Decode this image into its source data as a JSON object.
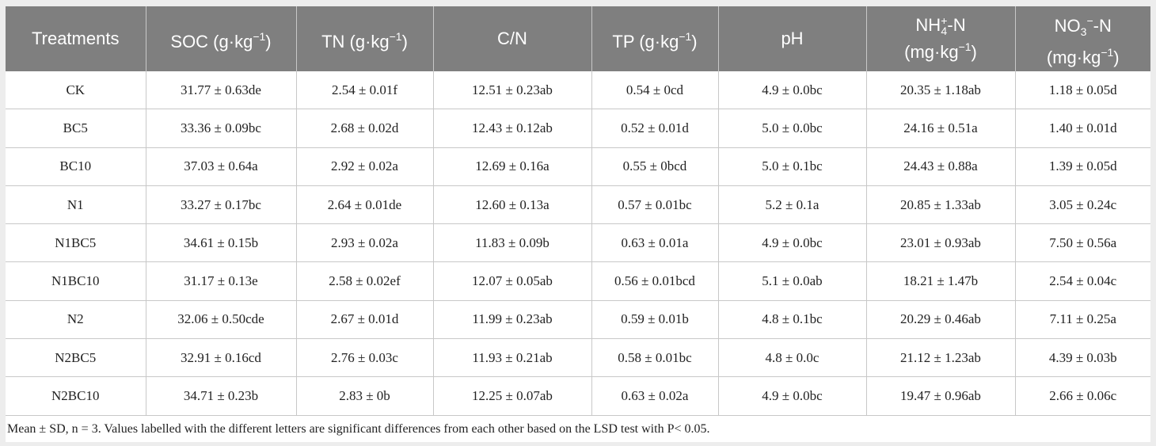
{
  "table": {
    "header": [
      [
        [
          {
            "t": "Treatments"
          }
        ]
      ],
      [
        [
          {
            "t": "SOC (g·kg"
          },
          {
            "t": "−1",
            "s": "sup"
          },
          {
            "t": ")"
          }
        ]
      ],
      [
        [
          {
            "t": "TN (g·kg"
          },
          {
            "t": "−1",
            "s": "sup"
          },
          {
            "t": ")"
          }
        ]
      ],
      [
        [
          {
            "t": "C/N"
          }
        ]
      ],
      [
        [
          {
            "t": "TP (g·kg"
          },
          {
            "t": "−1",
            "s": "sup"
          },
          {
            "t": ")"
          }
        ]
      ],
      [
        [
          {
            "t": "pH"
          }
        ]
      ],
      [
        [
          {
            "t": "NH"
          },
          {
            "t": "+",
            "s": "supsub",
            "u": "4"
          },
          {
            "t": "-N"
          }
        ],
        [
          {
            "t": "(mg·kg"
          },
          {
            "t": "−1",
            "s": "sup"
          },
          {
            "t": ")"
          }
        ]
      ],
      [
        [
          {
            "t": "NO"
          },
          {
            "t": "3",
            "s": "sub"
          },
          {
            "t": "−",
            "s": "sup"
          },
          {
            "t": "-N"
          }
        ],
        [
          {
            "t": "(mg·kg"
          },
          {
            "t": "−1",
            "s": "sup"
          },
          {
            "t": ")"
          }
        ]
      ]
    ],
    "rows": [
      [
        "CK",
        "31.77 ± 0.63de",
        "2.54 ± 0.01f",
        "12.51 ± 0.23ab",
        "0.54 ± 0cd",
        "4.9 ± 0.0bc",
        "20.35 ± 1.18ab",
        "1.18 ± 0.05d"
      ],
      [
        "BC5",
        "33.36 ± 0.09bc",
        "2.68 ± 0.02d",
        "12.43 ± 0.12ab",
        "0.52 ± 0.01d",
        "5.0 ± 0.0bc",
        "24.16 ± 0.51a",
        "1.40 ± 0.01d"
      ],
      [
        "BC10",
        "37.03 ± 0.64a",
        "2.92 ± 0.02a",
        "12.69 ± 0.16a",
        "0.55 ± 0bcd",
        "5.0 ± 0.1bc",
        "24.43 ± 0.88a",
        "1.39 ± 0.05d"
      ],
      [
        "N1",
        "33.27 ± 0.17bc",
        "2.64 ± 0.01de",
        "12.60 ± 0.13a",
        "0.57 ± 0.01bc",
        "5.2 ± 0.1a",
        "20.85 ± 1.33ab",
        "3.05 ± 0.24c"
      ],
      [
        "N1BC5",
        "34.61 ± 0.15b",
        "2.93 ± 0.02a",
        "11.83 ± 0.09b",
        "0.63 ± 0.01a",
        "4.9 ± 0.0bc",
        "23.01 ± 0.93ab",
        "7.50 ± 0.56a"
      ],
      [
        "N1BC10",
        "31.17 ± 0.13e",
        "2.58 ± 0.02ef",
        "12.07 ± 0.05ab",
        "0.56 ± 0.01bcd",
        "5.1 ± 0.0ab",
        "18.21 ± 1.47b",
        "2.54 ± 0.04c"
      ],
      [
        "N2",
        "32.06 ± 0.50cde",
        "2.67 ± 0.01d",
        "11.99 ± 0.23ab",
        "0.59 ± 0.01b",
        "4.8 ± 0.1bc",
        "20.29 ± 0.46ab",
        "7.11 ± 0.25a"
      ],
      [
        "N2BC5",
        "32.91 ± 0.16cd",
        "2.76 ± 0.03c",
        "11.93 ± 0.21ab",
        "0.58 ± 0.01bc",
        "4.8 ± 0.0c",
        "21.12 ± 1.23ab",
        "4.39 ± 0.03b"
      ],
      [
        "N2BC10",
        "34.71 ± 0.23b",
        "2.83 ± 0b",
        "12.25 ± 0.07ab",
        "0.63 ± 0.02a",
        "4.9 ± 0.0bc",
        "19.47 ± 0.96ab",
        "2.66 ± 0.06c"
      ]
    ],
    "note": "Mean ± SD, n = 3. Values labelled with the different letters are significant differences from each other based on the LSD test with P< 0.05."
  }
}
